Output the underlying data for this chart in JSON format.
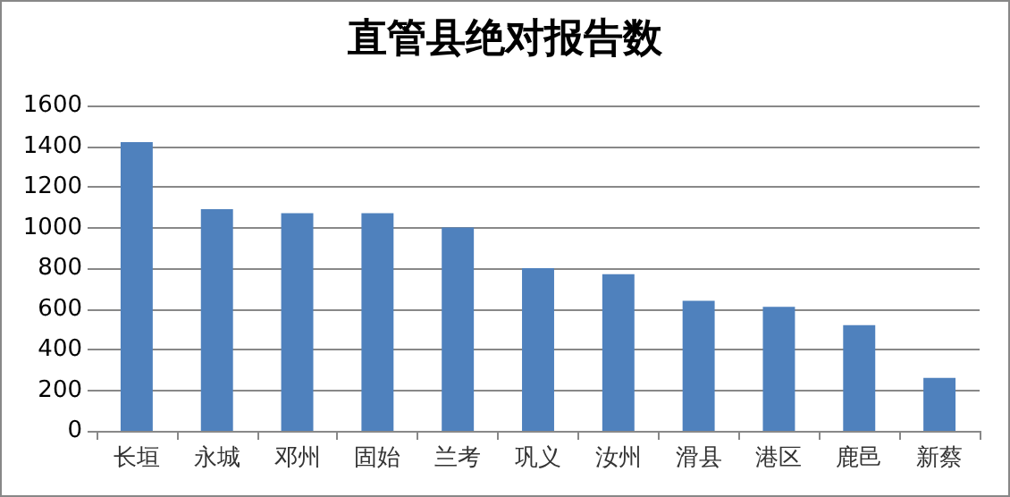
{
  "chart_data": {
    "type": "bar",
    "title": "直管县绝对报告数",
    "categories": [
      "长垣",
      "永城",
      "邓州",
      "固始",
      "兰考",
      "巩义",
      "汝州",
      "滑县",
      "港区",
      "鹿邑",
      "新蔡"
    ],
    "values": [
      1420,
      1090,
      1070,
      1070,
      1000,
      800,
      770,
      640,
      610,
      520,
      260
    ],
    "color": "#4f81bd",
    "ylim": [
      0,
      1600
    ],
    "yticks": [
      0,
      200,
      400,
      600,
      800,
      1000,
      1200,
      1400,
      1600
    ],
    "grid": "y"
  }
}
